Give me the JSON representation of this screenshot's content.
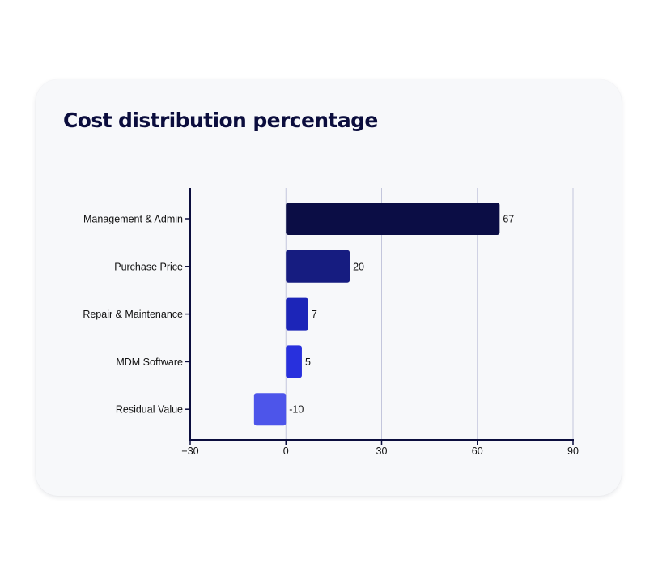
{
  "card": {
    "title": "Cost distribution percentage"
  },
  "chart_data": {
    "type": "bar",
    "orientation": "horizontal",
    "title": "Cost distribution percentage",
    "xlabel": "",
    "ylabel": "",
    "categories": [
      "Management & Admin",
      "Purchase Price",
      "Repair & Maintenance",
      "MDM Software",
      "Residual Value"
    ],
    "values": [
      67,
      20,
      7,
      5,
      -10
    ],
    "value_labels": [
      "67",
      "20",
      "7",
      "5",
      "-10"
    ],
    "xlim": [
      -30,
      90
    ],
    "xticks": [
      -30,
      0,
      30,
      60,
      90
    ],
    "xtick_labels": [
      "−30",
      "0",
      "30",
      "60",
      "90"
    ],
    "grid": "vertical",
    "legend": "none",
    "colors": [
      "#0b0d45",
      "#161c80",
      "#1c25b8",
      "#2830dd",
      "#4d55ea"
    ],
    "grid_color": "#c3c6dc",
    "axis_color": "#0b0d3d"
  }
}
